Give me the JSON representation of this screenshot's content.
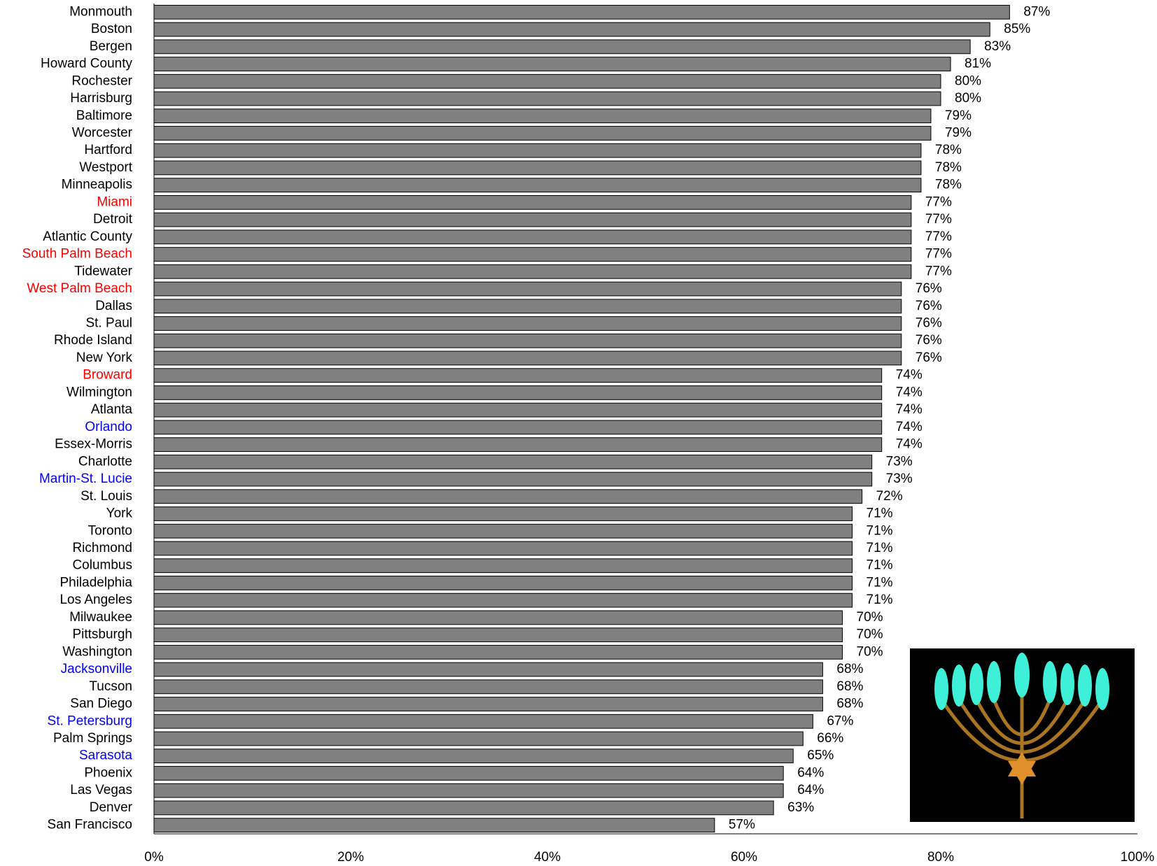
{
  "chart_data": {
    "type": "hbar",
    "categories": [
      "Monmouth",
      "Boston",
      "Bergen",
      "Howard County",
      "Rochester",
      "Harrisburg",
      "Baltimore",
      "Worcester",
      "Hartford",
      "Westport",
      "Minneapolis",
      "Miami",
      "Detroit",
      "Atlantic County",
      "South Palm Beach",
      "Tidewater",
      "West Palm Beach",
      "Dallas",
      "St. Paul",
      "Rhode Island",
      "New York",
      "Broward",
      "Wilmington",
      "Atlanta",
      "Orlando",
      "Essex-Morris",
      "Charlotte",
      "Martin-St. Lucie",
      "St. Louis",
      "York",
      "Toronto",
      "Richmond",
      "Columbus",
      "Philadelphia",
      "Los Angeles",
      "Milwaukee",
      "Pittsburgh",
      "Washington",
      "Jacksonville",
      "Tucson",
      "San Diego",
      "St. Petersburg",
      "Palm Springs",
      "Sarasota",
      "Phoenix",
      "Las Vegas",
      "Denver",
      "San Francisco"
    ],
    "label_colors": [
      "#000000",
      "#000000",
      "#000000",
      "#000000",
      "#000000",
      "#000000",
      "#000000",
      "#000000",
      "#000000",
      "#000000",
      "#000000",
      "#ff0000",
      "#000000",
      "#000000",
      "#ff0000",
      "#000000",
      "#ff0000",
      "#000000",
      "#000000",
      "#000000",
      "#000000",
      "#ff0000",
      "#000000",
      "#000000",
      "#0000ff",
      "#000000",
      "#000000",
      "#0000ff",
      "#000000",
      "#000000",
      "#000000",
      "#000000",
      "#000000",
      "#000000",
      "#000000",
      "#000000",
      "#000000",
      "#000000",
      "#0000ff",
      "#000000",
      "#000000",
      "#0000ff",
      "#000000",
      "#0000ff",
      "#000000",
      "#000000",
      "#000000",
      "#000000"
    ],
    "values": [
      87,
      85,
      83,
      81,
      80,
      80,
      79,
      79,
      78,
      78,
      78,
      77,
      77,
      77,
      77,
      77,
      76,
      76,
      76,
      76,
      76,
      74,
      74,
      74,
      74,
      74,
      73,
      73,
      72,
      71,
      71,
      71,
      71,
      71,
      71,
      70,
      70,
      70,
      68,
      68,
      68,
      67,
      66,
      65,
      64,
      64,
      63,
      57
    ],
    "value_labels": [
      "87%",
      "85%",
      "83%",
      "81%",
      "80%",
      "80%",
      "79%",
      "79%",
      "78%",
      "78%",
      "78%",
      "77%",
      "77%",
      "77%",
      "77%",
      "77%",
      "76%",
      "76%",
      "76%",
      "76%",
      "76%",
      "74%",
      "74%",
      "74%",
      "74%",
      "74%",
      "73%",
      "73%",
      "72%",
      "71%",
      "71%",
      "71%",
      "71%",
      "71%",
      "71%",
      "70%",
      "70%",
      "70%",
      "68%",
      "68%",
      "68%",
      "67%",
      "66%",
      "65%",
      "64%",
      "64%",
      "63%",
      "57%"
    ],
    "color": "#808080",
    "xlim": [
      0,
      100
    ],
    "xticks": [
      {
        "value": 0,
        "label": "0%"
      },
      {
        "value": 20,
        "label": "20%"
      },
      {
        "value": 40,
        "label": "40%"
      },
      {
        "value": 60,
        "label": "60%"
      },
      {
        "value": 80,
        "label": "80%"
      },
      {
        "value": 100,
        "label": "100%"
      }
    ]
  }
}
